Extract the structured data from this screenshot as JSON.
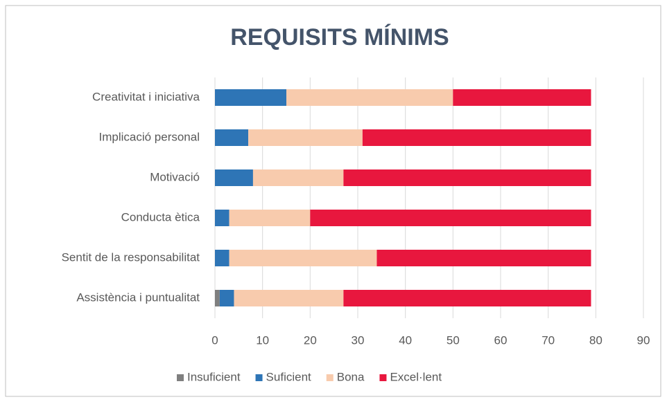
{
  "chart_data": {
    "type": "stacked-bar-horizontal",
    "title": "REQUISITS MÍNIMS",
    "categories": [
      "Creativitat i iniciativa",
      "Implicació personal",
      "Motivació",
      "Conducta ètica",
      "Sentit de la responsabilitat",
      "Assistència i puntualitat"
    ],
    "series": [
      {
        "name": "Insuficient",
        "color": "#7f7f7f",
        "values": [
          0,
          0,
          0,
          0,
          0,
          1
        ]
      },
      {
        "name": "Suficient",
        "color": "#2e75b6",
        "values": [
          15,
          7,
          8,
          3,
          3,
          3
        ]
      },
      {
        "name": "Bona",
        "color": "#f8cbad",
        "values": [
          35,
          24,
          19,
          17,
          31,
          23
        ]
      },
      {
        "name": "Excel·lent",
        "color": "#e8173e",
        "values": [
          29,
          48,
          52,
          59,
          45,
          52
        ]
      }
    ],
    "xlim": [
      0,
      90
    ],
    "xticks": [
      0,
      10,
      20,
      30,
      40,
      50,
      60,
      70,
      80,
      90
    ],
    "grid": true,
    "legend": "bottom"
  }
}
